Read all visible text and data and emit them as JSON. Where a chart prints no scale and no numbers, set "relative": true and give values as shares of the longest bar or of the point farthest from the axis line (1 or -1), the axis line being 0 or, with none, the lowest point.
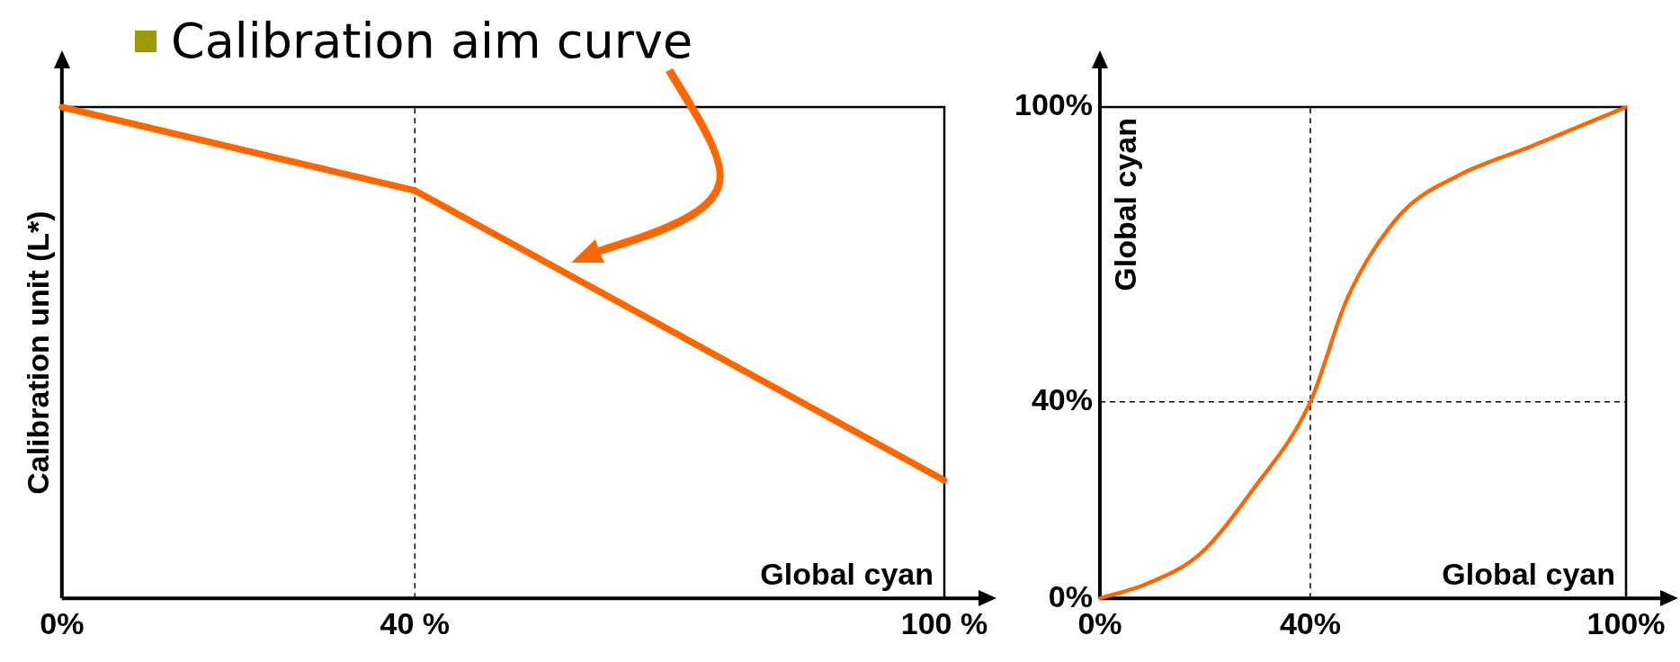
{
  "chart_data": [
    {
      "type": "line",
      "title": "Calibration aim curve",
      "xlabel": "Global cyan",
      "ylabel": "Calibration unit (L*)",
      "relative": true,
      "xlim": [
        0,
        100
      ],
      "xticks": [
        {
          "value": 0,
          "label": "0%"
        },
        {
          "value": 40,
          "label": "40 %"
        },
        {
          "value": 100,
          "label": "100 %"
        }
      ],
      "x": [
        0,
        40,
        100
      ],
      "series": [
        {
          "color": "#ff6600",
          "values": [
            1,
            0.83,
            0.24
          ]
        }
      ],
      "ref_lines": [
        {
          "axis": "x",
          "value": 40,
          "color": "#000000",
          "line_style": "dashed"
        }
      ],
      "grid": false,
      "legend": false,
      "marker": "none",
      "tick_labels": "x"
    },
    {
      "type": "line",
      "xlabel": "Global cyan",
      "ylabel": "Global cyan",
      "xlim": [
        0,
        100
      ],
      "ylim": [
        0,
        100
      ],
      "xticks": [
        {
          "value": 0,
          "label": "0%"
        },
        {
          "value": 40,
          "label": "40%"
        },
        {
          "value": 100,
          "label": "100%"
        }
      ],
      "yticks": [
        {
          "value": 0,
          "label": "0%"
        },
        {
          "value": 40,
          "label": "40%"
        },
        {
          "value": 100,
          "label": "100%"
        }
      ],
      "x": [
        0,
        9,
        19,
        29,
        40,
        47,
        57,
        68,
        82,
        100
      ],
      "series": [
        {
          "color": "#ff6600",
          "values": [
            0,
            3,
            9,
            22,
            40,
            61,
            78,
            86,
            92,
            100
          ]
        }
      ],
      "ref_lines": [
        {
          "axis": "x",
          "value": 40,
          "color": "#000000",
          "line_style": "dashed"
        },
        {
          "axis": "y",
          "value": 40,
          "color": "#000000",
          "line_style": "dashed"
        }
      ],
      "grid": false,
      "legend": false,
      "marker": "none"
    }
  ]
}
